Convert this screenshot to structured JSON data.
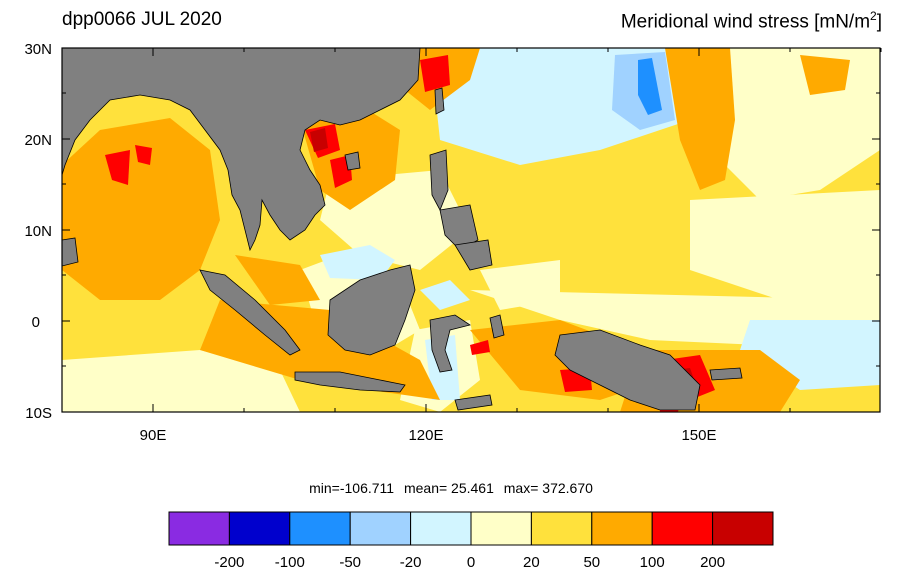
{
  "title_left": "dpp0066 JUL 2020",
  "title_right": "Meridional wind stress [mN/m",
  "title_right_sup": "2",
  "title_right_end": "]",
  "lat_labels": [
    "30N",
    "20N",
    "10N",
    "0",
    "10S"
  ],
  "lon_labels": [
    "90E",
    "120E",
    "150E"
  ],
  "stats": {
    "min": "min=-106.711",
    "mean": "mean=  25.461",
    "max": "max= 372.670"
  },
  "colorbar": {
    "colors": [
      "#8a2be2",
      "#0000cd",
      "#1e90ff",
      "#a0d2ff",
      "#d2f5ff",
      "#ffffc8",
      "#ffe13c",
      "#ffaa00",
      "#ff0000",
      "#c80000"
    ],
    "labels": [
      "-200",
      "-100",
      "-50",
      "-20",
      "0",
      "20",
      "50",
      "100",
      "200"
    ]
  },
  "colors": {
    "land": "#808080",
    "ocean_base": "#ffe13c"
  }
}
